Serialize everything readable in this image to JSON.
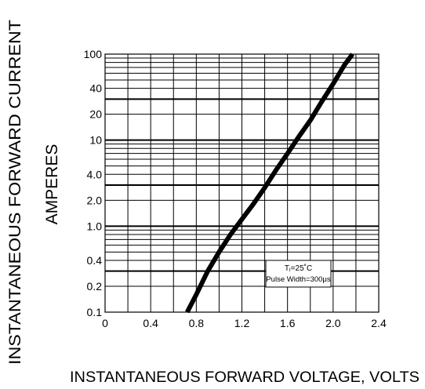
{
  "chart_data": {
    "type": "line",
    "title": "",
    "ylabel_line1": "INSTANTANEOUS FORWARD CURRENT",
    "ylabel_line2": "AMPERES",
    "xlabel": "INSTANTANEOUS FORWARD VOLTAGE,  VOLTS",
    "yscale": "log",
    "xlim": [
      0,
      2.4
    ],
    "ylim": [
      0.1,
      100
    ],
    "grid": true,
    "x_ticks": [
      "0",
      "0.4",
      "0.8",
      "1.2",
      "1.6",
      "2.0",
      "2.4"
    ],
    "y_ticks": [
      "0.1",
      "0.2",
      "0.4",
      "1.0",
      "2.0",
      "4.0",
      "10",
      "20",
      "40",
      "100"
    ],
    "annotation_line1": "Tⱼ=25˚C",
    "annotation_line2": "Pulse Width=300μs",
    "series": [
      {
        "x": [
          0.72,
          0.8,
          0.9,
          1.0,
          1.1,
          1.2,
          1.3,
          1.4,
          1.5,
          1.6,
          1.7,
          1.8,
          1.9,
          2.0,
          2.1,
          2.17
        ],
        "values": [
          0.1,
          0.16,
          0.3,
          0.5,
          0.8,
          1.2,
          1.8,
          2.8,
          4.5,
          7.0,
          11,
          17,
          28,
          45,
          75,
          100
        ]
      }
    ],
    "line_color": "#000000"
  }
}
